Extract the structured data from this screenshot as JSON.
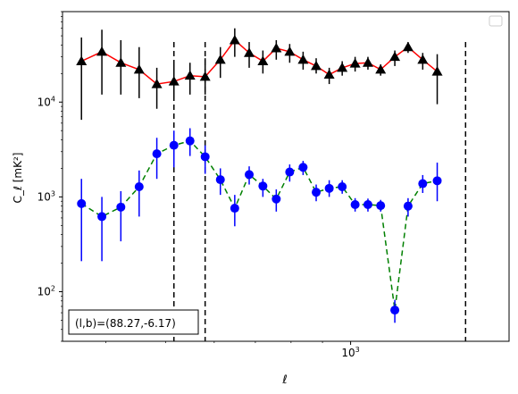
{
  "chart_data": {
    "type": "scatter",
    "title": "",
    "xlabel": "ℓ",
    "ylabel": "C_ℓ  [mK²]",
    "xscale": "log",
    "yscale": "log",
    "xlim": [
      340,
      1810
    ],
    "ylim": [
      30,
      90000
    ],
    "x_ticks": [
      {
        "value": 1000,
        "base": "10",
        "exp": "3"
      }
    ],
    "y_ticks": [
      {
        "value": 100,
        "base": "10",
        "exp": "2"
      },
      {
        "value": 1000,
        "base": "10",
        "exp": "3"
      },
      {
        "value": 10000,
        "base": "10",
        "exp": "4"
      }
    ],
    "grid": false,
    "legend": {
      "placement": "top-right",
      "entries": []
    },
    "annotation": "(l,b)=(88.27,-6.17)",
    "vlines": [
      516,
      580,
      1538
    ],
    "series": [
      {
        "marker": "triangle",
        "color": "#000000",
        "line_color": "#ff0000",
        "line_style": "solid",
        "points": [
          {
            "x": 365,
            "y": 27000,
            "lo": 6500,
            "hi": 48000
          },
          {
            "x": 394,
            "y": 34000,
            "lo": 12000,
            "hi": 58000
          },
          {
            "x": 423,
            "y": 26000,
            "lo": 12000,
            "hi": 45000
          },
          {
            "x": 453,
            "y": 22000,
            "lo": 11000,
            "hi": 38000
          },
          {
            "x": 484,
            "y": 15500,
            "lo": 8500,
            "hi": 23000
          },
          {
            "x": 516,
            "y": 16500,
            "lo": 11000,
            "hi": 25000
          },
          {
            "x": 548,
            "y": 19000,
            "lo": 12000,
            "hi": 26000
          },
          {
            "x": 580,
            "y": 18500,
            "lo": 12000,
            "hi": 29000
          },
          {
            "x": 614,
            "y": 28000,
            "lo": 18000,
            "hi": 38000
          },
          {
            "x": 648,
            "y": 45000,
            "lo": 30000,
            "hi": 60000
          },
          {
            "x": 684,
            "y": 33000,
            "lo": 23000,
            "hi": 43000
          },
          {
            "x": 720,
            "y": 27000,
            "lo": 20000,
            "hi": 35000
          },
          {
            "x": 757,
            "y": 37000,
            "lo": 28000,
            "hi": 45000
          },
          {
            "x": 796,
            "y": 34000,
            "lo": 26000,
            "hi": 41000
          },
          {
            "x": 837,
            "y": 28000,
            "lo": 22000,
            "hi": 34000
          },
          {
            "x": 879,
            "y": 24000,
            "lo": 20000,
            "hi": 29000
          },
          {
            "x": 923,
            "y": 19500,
            "lo": 15500,
            "hi": 23000
          },
          {
            "x": 969,
            "y": 23000,
            "lo": 19000,
            "hi": 27000
          },
          {
            "x": 1017,
            "y": 25500,
            "lo": 21000,
            "hi": 30000
          },
          {
            "x": 1067,
            "y": 26000,
            "lo": 22000,
            "hi": 30000
          },
          {
            "x": 1119,
            "y": 22000,
            "lo": 19000,
            "hi": 25000
          },
          {
            "x": 1180,
            "y": 30000,
            "lo": 24000,
            "hi": 35000
          },
          {
            "x": 1240,
            "y": 38000,
            "lo": 33000,
            "hi": 43000
          },
          {
            "x": 1310,
            "y": 28000,
            "lo": 22000,
            "hi": 33000
          },
          {
            "x": 1383,
            "y": 21000,
            "lo": 9500,
            "hi": 32000
          }
        ]
      },
      {
        "marker": "circle",
        "color": "#0000ff",
        "line_color": "#008000",
        "line_style": "dashed",
        "points": [
          {
            "x": 365,
            "y": 850,
            "lo": 210,
            "hi": 1550
          },
          {
            "x": 394,
            "y": 620,
            "lo": 210,
            "hi": 1000
          },
          {
            "x": 423,
            "y": 780,
            "lo": 340,
            "hi": 1150
          },
          {
            "x": 453,
            "y": 1280,
            "lo": 620,
            "hi": 1900
          },
          {
            "x": 484,
            "y": 2850,
            "lo": 1550,
            "hi": 4200
          },
          {
            "x": 516,
            "y": 3500,
            "lo": 2050,
            "hi": 5000
          },
          {
            "x": 548,
            "y": 3900,
            "lo": 2700,
            "hi": 5300
          },
          {
            "x": 580,
            "y": 2650,
            "lo": 1750,
            "hi": 3500
          },
          {
            "x": 614,
            "y": 1520,
            "lo": 1050,
            "hi": 2000
          },
          {
            "x": 648,
            "y": 760,
            "lo": 490,
            "hi": 1050
          },
          {
            "x": 684,
            "y": 1720,
            "lo": 1350,
            "hi": 2100
          },
          {
            "x": 720,
            "y": 1300,
            "lo": 1000,
            "hi": 1550
          },
          {
            "x": 757,
            "y": 950,
            "lo": 700,
            "hi": 1200
          },
          {
            "x": 796,
            "y": 1830,
            "lo": 1450,
            "hi": 2200
          },
          {
            "x": 837,
            "y": 2050,
            "lo": 1700,
            "hi": 2400
          },
          {
            "x": 879,
            "y": 1120,
            "lo": 900,
            "hi": 1350
          },
          {
            "x": 923,
            "y": 1230,
            "lo": 1000,
            "hi": 1500
          },
          {
            "x": 969,
            "y": 1280,
            "lo": 1080,
            "hi": 1500
          },
          {
            "x": 1017,
            "y": 830,
            "lo": 700,
            "hi": 970
          },
          {
            "x": 1067,
            "y": 830,
            "lo": 700,
            "hi": 960
          },
          {
            "x": 1119,
            "y": 810,
            "lo": 700,
            "hi": 930
          },
          {
            "x": 1180,
            "y": 64,
            "lo": 47,
            "hi": 82
          },
          {
            "x": 1240,
            "y": 800,
            "lo": 620,
            "hi": 970
          },
          {
            "x": 1310,
            "y": 1380,
            "lo": 1100,
            "hi": 1700
          },
          {
            "x": 1383,
            "y": 1480,
            "lo": 900,
            "hi": 2300
          }
        ]
      }
    ]
  }
}
